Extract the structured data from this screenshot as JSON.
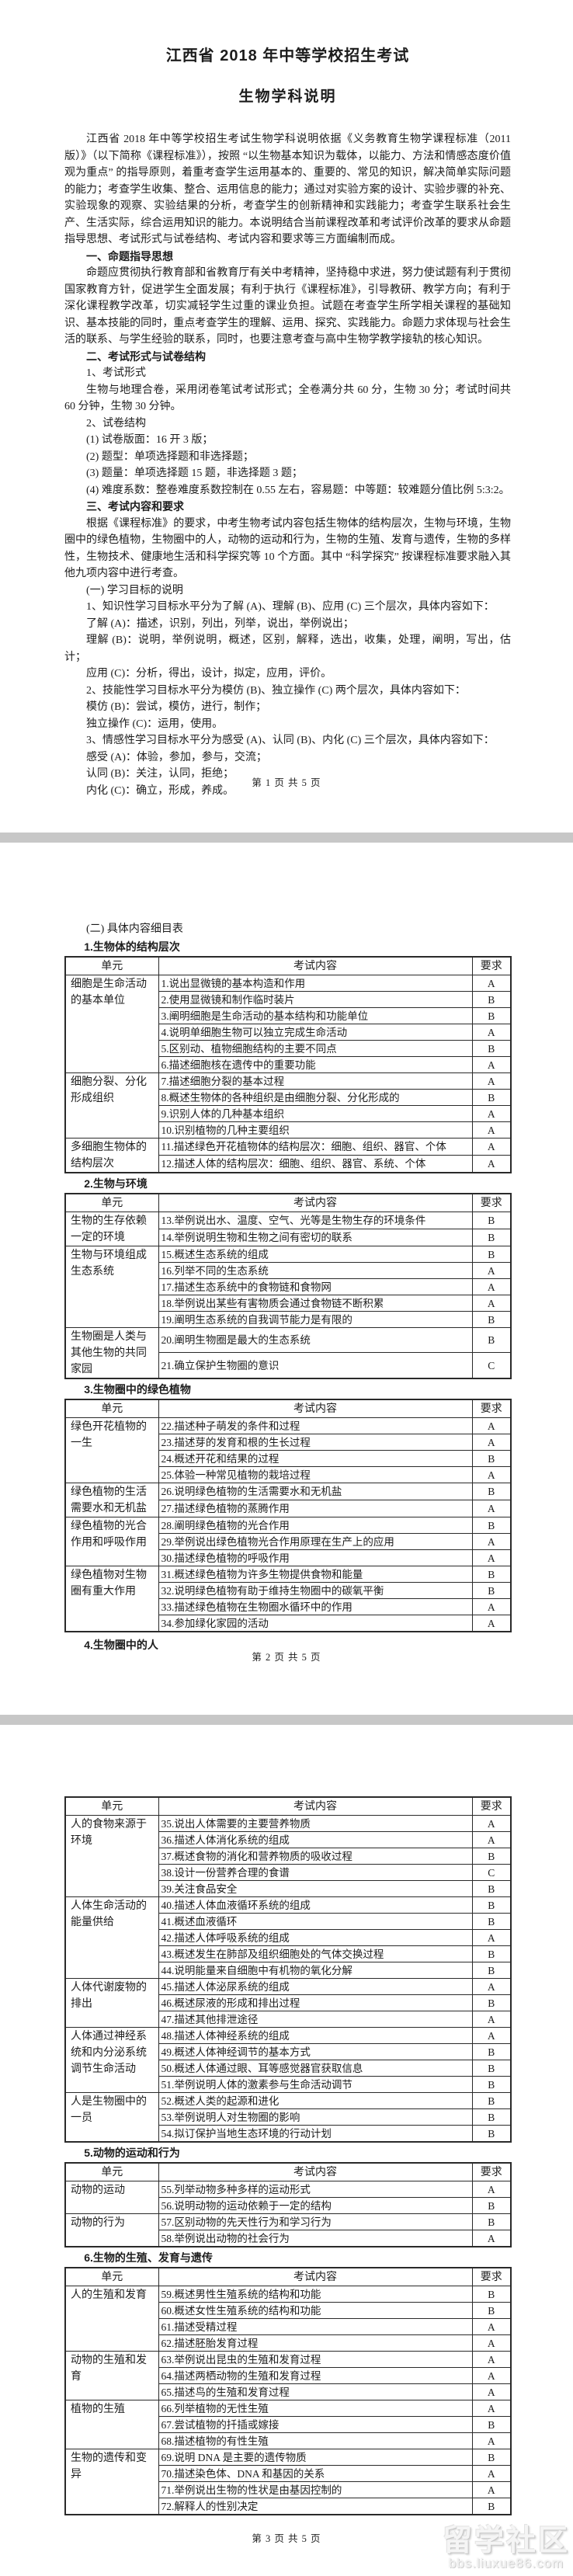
{
  "colors": {
    "page_background": "#ffffff",
    "divider": "#c7c7c7",
    "text": "#1c1c1c",
    "table_border": "#2a2a2a",
    "watermark": "#eeeeee"
  },
  "table_header": {
    "unit": "单元",
    "content": "考试内容",
    "requirement": "要求"
  },
  "watermark": {
    "line1": "留学社区",
    "line2": "bbs.liuxue86.com"
  },
  "page1": {
    "title": "江西省 2018 年中等学校招生考试",
    "subtitle": "生物学科说明",
    "paragraphs": [
      {
        "style": "body",
        "text": "江西省 2018 年中等学校招生考试生物学科说明依据《义务教育生物学课程标准（2011 版）》（以下简称《课程标准》），按照 “以生物基本知识为载体，以能力、方法和情感态度价值观为重点” 的指导原则，着重考查学生运用基本的、重要的、常见的知识，解决简单实际问题的能力；考查学生收集、整合、运用信息的能力；通过对实验方案的设计、实验步骤的补充、实验现象的观察、实验结果的分析，考查学生的创新精神和实践能力；考查学生联系社会生产、生活实际，综合运用知识的能力。本说明结合当前课程改革和考试评价改革的要求从命题指导思想、考试形式与试卷结构、考试内容和要求等三方面编制而成。"
      },
      {
        "style": "heading",
        "text": "一、命题指导思想"
      },
      {
        "style": "body",
        "text": "命题应贯彻执行教育部和省教育厅有关中考精神，坚持稳中求进，努力使试题有利于贯彻国家教育方针，促进学生全面发展；有利于执行《课程标准》，引导教研、教学方向；有利于深化课程教学改革，切实减轻学生过重的课业负担。试题在考查学生所学相关课程的基础知识、基本技能的同时，重点考查学生的理解、运用、探究、实践能力。命题力求体现与社会生活的联系、与学生经验的联系，同时，也要注意考查与高中生物学教学接轨的核心知识。"
      },
      {
        "style": "heading",
        "text": "二、考试形式与试卷结构"
      },
      {
        "style": "body",
        "text": "1、考试形式"
      },
      {
        "style": "body",
        "text": "生物与地理合卷，采用闭卷笔试考试形式；全卷满分共 60 分，生物 30 分；考试时间共 60 分钟，生物 30 分钟。"
      },
      {
        "style": "body",
        "text": "2、试卷结构"
      },
      {
        "style": "body",
        "text": "(1) 试卷版面：16 开 3 版；"
      },
      {
        "style": "body",
        "text": "(2) 题型：单项选择题和非选择题；"
      },
      {
        "style": "body",
        "text": "(3) 题量：单项选择题 15 题，非选择题 3 题；"
      },
      {
        "style": "body",
        "text": "(4) 难度系数：整卷难度系数控制在 0.55 左右，容易题：中等题：较难题分值比例 5:3:2。"
      },
      {
        "style": "heading",
        "text": "三、考试内容和要求"
      },
      {
        "style": "body",
        "text": "根据《课程标准》的要求，中考生物考试内容包括生物体的结构层次，生物与环境，生物圈中的绿色植物，生物圈中的人，动物的运动和行为，生物的生殖、发育与遗传，生物的多样性，生物技术、健康地生活和科学探究等 10 个方面。其中 “科学探究” 按课程标准要求融入其他九项内容中进行考查。"
      },
      {
        "style": "body",
        "text": "(一) 学习目标的说明"
      },
      {
        "style": "body",
        "text": "1、知识性学习目标水平分为了解 (A)、理解 (B)、应用 (C) 三个层次，具体内容如下："
      },
      {
        "style": "body",
        "text": "了解 (A)：描述，识别，列出，列举，说出，举例说出；"
      },
      {
        "style": "body",
        "text": "理解 (B)：说明，举例说明，概述，区别，解释，选出，收集，处理，阐明，写出，估计；"
      },
      {
        "style": "body",
        "text": "应用 (C)：分析，得出，设计，拟定，应用，评价。"
      },
      {
        "style": "body",
        "text": "2、技能性学习目标水平分为模仿 (B)、独立操作 (C) 两个层次，具体内容如下："
      },
      {
        "style": "body",
        "text": "模仿 (B)：尝试，模仿，进行，制作；"
      },
      {
        "style": "body",
        "text": "独立操作 (C)：运用，使用。"
      },
      {
        "style": "body",
        "text": "3、情感性学习目标水平分为感受 (A)、认同 (B)、内化 (C) 三个层次，具体内容如下："
      },
      {
        "style": "body",
        "text": "感受 (A)：体验，参加，参与，交流；"
      },
      {
        "style": "body",
        "text": "认同 (B)：关注，认同，拒绝；"
      },
      {
        "style": "body",
        "text": "内化 (C)：确立，形成，养成。"
      }
    ],
    "footer": "第 1 页 共 5 页"
  },
  "page2": {
    "heading": "(二) 具体内容细目表",
    "trailing_heading": "4.生物圈中的人",
    "footer": "第 2 页 共 5 页",
    "sections": [
      {
        "title": "1.生物体的结构层次",
        "groups": [
          {
            "unit": "细胞是生命活动的基本单位",
            "items": [
              {
                "content": "1.说出显微镜的基本构造和作用",
                "req": "A"
              },
              {
                "content": "2.使用显微镜和制作临时装片",
                "req": "B"
              },
              {
                "content": "3.阐明细胞是生命活动的基本结构和功能单位",
                "req": "B"
              },
              {
                "content": "4.说明单细胞生物可以独立完成生命活动",
                "req": "A"
              },
              {
                "content": "5.区别动、植物细胞结构的主要不同点",
                "req": "B"
              },
              {
                "content": "6.描述细胞核在遗传中的重要功能",
                "req": "A"
              }
            ]
          },
          {
            "unit": "细胞分裂、分化形成组织",
            "items": [
              {
                "content": "7.描述细胞分裂的基本过程",
                "req": "A"
              },
              {
                "content": "8.概述生物体的各种组织是由细胞分裂、分化形成的",
                "req": "B"
              },
              {
                "content": "9.识别人体的几种基本组织",
                "req": "A"
              },
              {
                "content": "10.识别植物的几种主要组织",
                "req": "A"
              }
            ]
          },
          {
            "unit": "多细胞生物体的结构层次",
            "items": [
              {
                "content": "11.描述绿色开花植物体的结构层次：细胞、组织、器官、个体",
                "req": "A"
              },
              {
                "content": "12.描述人体的结构层次：细胞、组织、器官、系统、个体",
                "req": "A"
              }
            ]
          }
        ]
      },
      {
        "title": "2.生物与环境",
        "groups": [
          {
            "unit": "生物的生存依赖一定的环境",
            "items": [
              {
                "content": "13.举例说出水、温度、空气、光等是生物生存的环境条件",
                "req": "B"
              },
              {
                "content": "14.举例说明生物和生物之间有密切的联系",
                "req": "B"
              }
            ]
          },
          {
            "unit": "生物与环境组成生态系统",
            "items": [
              {
                "content": "15.概述生态系统的组成",
                "req": "B"
              },
              {
                "content": "16.列举不同的生态系统",
                "req": "A"
              },
              {
                "content": "17.描述生态系统中的食物链和食物网",
                "req": "A"
              },
              {
                "content": "18.举例说出某些有害物质会通过食物链不断积累",
                "req": "A"
              },
              {
                "content": "19.阐明生态系统的自我调节能力是有限的",
                "req": "B"
              }
            ]
          },
          {
            "unit": "生物圈是人类与其他生物的共同家园",
            "items": [
              {
                "content": "20.阐明生物圈是最大的生态系统",
                "req": "B"
              },
              {
                "content": "21.确立保护生物圈的意识",
                "req": "C"
              }
            ]
          }
        ]
      },
      {
        "title": "3.生物圈中的绿色植物",
        "groups": [
          {
            "unit": "绿色开花植物的一生",
            "items": [
              {
                "content": "22.描述种子萌发的条件和过程",
                "req": "A"
              },
              {
                "content": "23.描述芽的发育和根的生长过程",
                "req": "A"
              },
              {
                "content": "24.概述开花和结果的过程",
                "req": "B"
              },
              {
                "content": "25.体验一种常见植物的栽培过程",
                "req": "A"
              }
            ]
          },
          {
            "unit": "绿色植物的生活需要水和无机盐",
            "items": [
              {
                "content": "26.说明绿色植物的生活需要水和无机盐",
                "req": "B"
              },
              {
                "content": "27.描述绿色植物的蒸腾作用",
                "req": "A"
              }
            ]
          },
          {
            "unit": "绿色植物的光合作用和呼吸作用",
            "items": [
              {
                "content": "28.阐明绿色植物的光合作用",
                "req": "B"
              },
              {
                "content": "29.举例说出绿色植物光合作用原理在生产上的应用",
                "req": "A"
              },
              {
                "content": "30.描述绿色植物的呼吸作用",
                "req": "A"
              }
            ]
          },
          {
            "unit": "绿色植物对生物圈有重大作用",
            "items": [
              {
                "content": "31.概述绿色植物为许多生物提供食物和能量",
                "req": "B"
              },
              {
                "content": "32.说明绿色植物有助于维持生物圈中的碳氧平衡",
                "req": "B"
              },
              {
                "content": "33.描述绿色植物在生物圈水循环中的作用",
                "req": "A"
              },
              {
                "content": "34.参加绿化家园的活动",
                "req": "A"
              }
            ]
          }
        ]
      }
    ]
  },
  "page3": {
    "footer": "第 3 页 共 5 页",
    "sections": [
      {
        "title": "",
        "groups": [
          {
            "unit": "人的食物来源于环境",
            "items": [
              {
                "content": "35.说出人体需要的主要营养物质",
                "req": "A"
              },
              {
                "content": "36.描述人体消化系统的组成",
                "req": "A"
              },
              {
                "content": "37.概述食物的消化和营养物质的吸收过程",
                "req": "B"
              },
              {
                "content": "38.设计一份营养合理的食谱",
                "req": "C"
              },
              {
                "content": "39.关注食品安全",
                "req": "B"
              }
            ]
          },
          {
            "unit": "人体生命活动的能量供给",
            "items": [
              {
                "content": "40.描述人体血液循环系统的组成",
                "req": "B"
              },
              {
                "content": "41.概述血液循环",
                "req": "B"
              },
              {
                "content": "42.描述人体呼吸系统的组成",
                "req": "A"
              },
              {
                "content": "43.概述发生在肺部及组织细胞处的气体交换过程",
                "req": "B"
              },
              {
                "content": "44.说明能量来自细胞中有机物的氧化分解",
                "req": "B"
              }
            ]
          },
          {
            "unit": "人体代谢废物的排出",
            "items": [
              {
                "content": "45.描述人体泌尿系统的组成",
                "req": "A"
              },
              {
                "content": "46.概述尿液的形成和排出过程",
                "req": "B"
              },
              {
                "content": "47.描述其他排泄途径",
                "req": "A"
              }
            ]
          },
          {
            "unit": "人体通过神经系统和内分泌系统调节生命活动",
            "items": [
              {
                "content": "48.描述人体神经系统的组成",
                "req": "A"
              },
              {
                "content": "49.概述人体神经调节的基本方式",
                "req": "B"
              },
              {
                "content": "50.概述人体通过眼、耳等感觉器官获取信息",
                "req": "B"
              },
              {
                "content": "51.举例说明人体的激素参与生命活动调节",
                "req": "B"
              }
            ]
          },
          {
            "unit": "人是生物圈中的一员",
            "items": [
              {
                "content": "52.概述人类的起源和进化",
                "req": "B"
              },
              {
                "content": "53.举例说明人对生物圈的影响",
                "req": "B"
              },
              {
                "content": "54.拟订保护当地生态环境的行动计划",
                "req": "B"
              }
            ]
          }
        ]
      },
      {
        "title": "5.动物的运动和行为",
        "groups": [
          {
            "unit": "动物的运动",
            "items": [
              {
                "content": "55.列举动物多种多样的运动形式",
                "req": "A"
              },
              {
                "content": "56.说明动物的运动依赖于一定的结构",
                "req": "B"
              }
            ]
          },
          {
            "unit": "动物的行为",
            "items": [
              {
                "content": "57.区别动物的先天性行为和学习行为",
                "req": "B"
              },
              {
                "content": "58.举例说出动物的社会行为",
                "req": "A"
              }
            ]
          }
        ]
      },
      {
        "title": "6.生物的生殖、发育与遗传",
        "groups": [
          {
            "unit": "人的生殖和发育",
            "items": [
              {
                "content": "59.概述男性生殖系统的结构和功能",
                "req": "B"
              },
              {
                "content": "60.概述女性生殖系统的结构和功能",
                "req": "B"
              },
              {
                "content": "61.描述受精过程",
                "req": "A"
              },
              {
                "content": "62.描述胚胎发育过程",
                "req": "A"
              }
            ]
          },
          {
            "unit": "动物的生殖和发育",
            "items": [
              {
                "content": "63.举例说出昆虫的生殖和发育过程",
                "req": "A"
              },
              {
                "content": "64.描述两栖动物的生殖和发育过程",
                "req": "A"
              },
              {
                "content": "65.描述鸟的生殖和发育过程",
                "req": "A"
              }
            ]
          },
          {
            "unit": "植物的生殖",
            "items": [
              {
                "content": "66.列举植物的无性生殖",
                "req": "A"
              },
              {
                "content": "67.尝试植物的扦插或嫁接",
                "req": "B"
              },
              {
                "content": "68.描述植物的有性生殖",
                "req": "A"
              }
            ]
          },
          {
            "unit": "生物的遗传和变异",
            "items": [
              {
                "content": "69.说明 DNA 是主要的遗传物质",
                "req": "B"
              },
              {
                "content": "70.描述染色体、DNA 和基因的关系",
                "req": "A"
              },
              {
                "content": "71.举例说出生物的性状是由基因控制的",
                "req": "A"
              },
              {
                "content": "72.解释人的性别决定",
                "req": "B"
              }
            ]
          }
        ]
      }
    ]
  }
}
